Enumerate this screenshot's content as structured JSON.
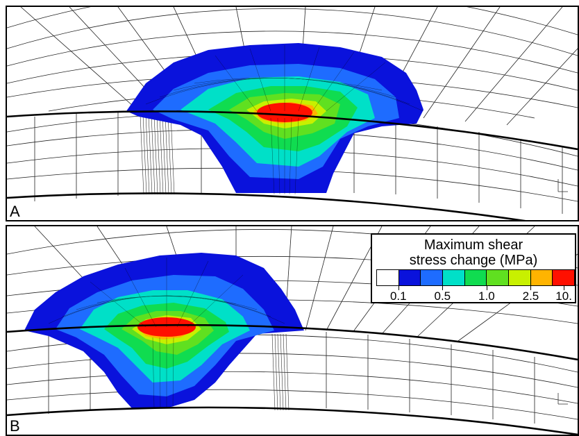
{
  "panels": [
    {
      "label": "A"
    },
    {
      "label": "B"
    }
  ],
  "legend": {
    "title_line1": "Maximum shear",
    "title_line2": "stress change (MPa)",
    "tick_labels": [
      "0.1",
      "0.5",
      "1.0",
      "2.5",
      "10."
    ],
    "colors": [
      "#ffffff",
      "#0a12dc",
      "#1e6cff",
      "#00e0c8",
      "#10dc50",
      "#60e020",
      "#c8f000",
      "#ffb400",
      "#ff1000"
    ]
  }
}
